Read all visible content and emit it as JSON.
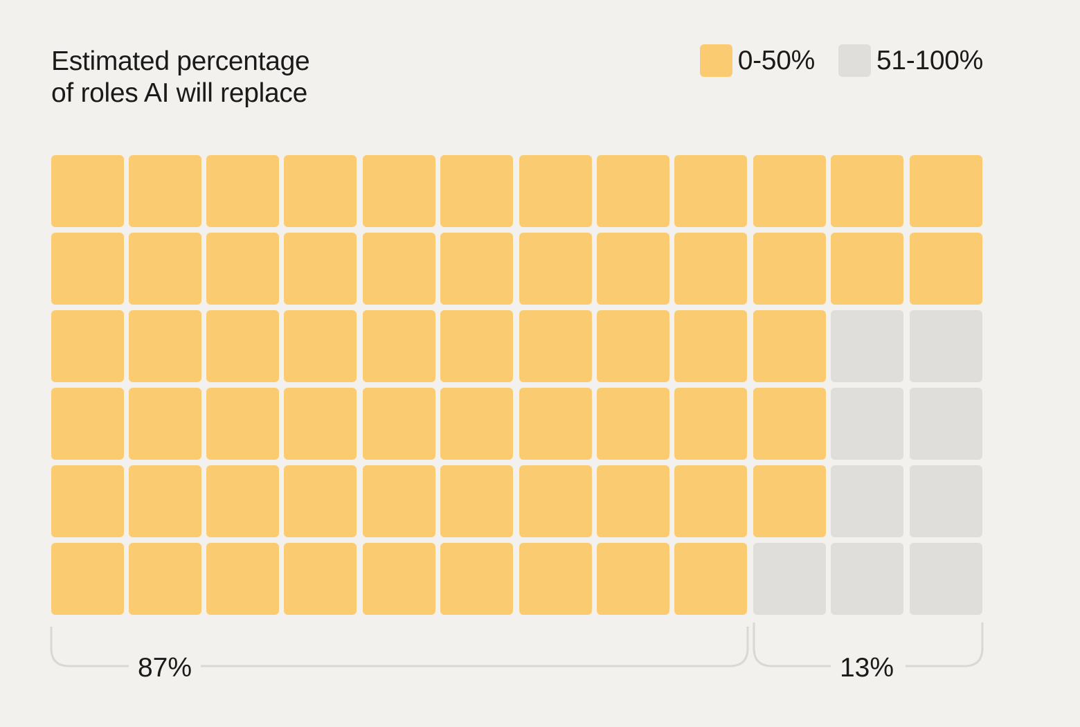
{
  "chart_data": {
    "type": "waffle",
    "title": "Estimated percentage of roles AI will replace",
    "title_lines": [
      "Estimated percentage",
      "of roles AI will replace"
    ],
    "rows": 6,
    "cols": 12,
    "categories": [
      {
        "label": "0-50%",
        "percent": 87,
        "percent_label": "87%",
        "color": "#FBCB72"
      },
      {
        "label": "51-100%",
        "percent": 13,
        "percent_label": "13%",
        "color": "#DFDEDA"
      }
    ],
    "tail_column_heights": [
      6,
      5,
      2,
      2
    ],
    "legend_position": "top-right"
  }
}
